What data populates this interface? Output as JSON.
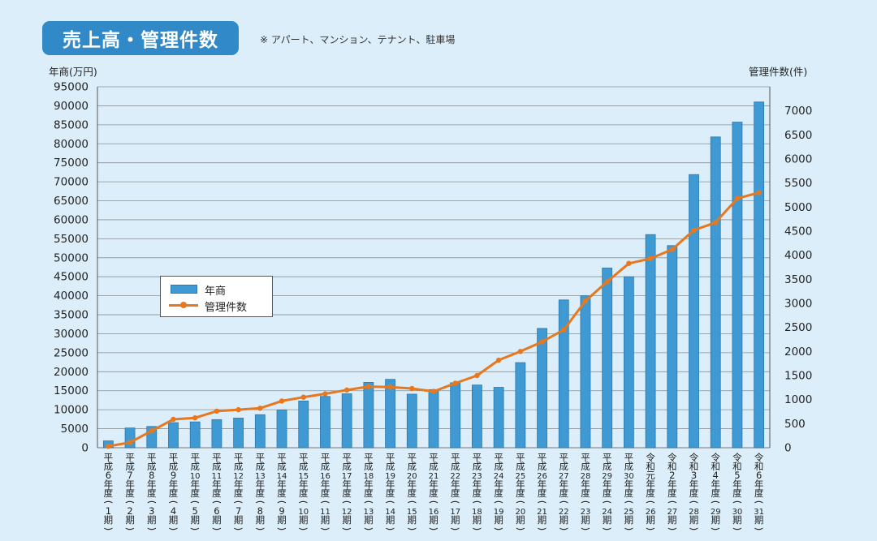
{
  "header": {
    "title": "売上高・管理件数",
    "note": "※ アパート、マンション、テナント、駐車場"
  },
  "colors": {
    "bar": "#3f9ad3",
    "bar_edge": "#2a78b0",
    "line": "#e8781e",
    "title_bg": "#3289c7",
    "background": "#dceef9"
  },
  "chart_data": {
    "type": "bar",
    "y_left_label": "年商(万円)",
    "y_right_label": "管理件数(件)",
    "ylim_left": [
      0,
      95000
    ],
    "ylim_right": [
      0,
      7500
    ],
    "yticks_left": [
      0,
      5000,
      10000,
      15000,
      20000,
      25000,
      30000,
      35000,
      40000,
      45000,
      50000,
      55000,
      60000,
      65000,
      70000,
      75000,
      80000,
      85000,
      90000,
      95000
    ],
    "yticks_right": [
      0,
      500,
      1000,
      1500,
      2000,
      2500,
      3000,
      3500,
      4000,
      4500,
      5000,
      5500,
      6000,
      6500,
      7000
    ],
    "grid": true,
    "legend_position": "middle-left",
    "categories": [
      [
        "平",
        "成",
        "6",
        "年",
        "度",
        "(",
        "1",
        "期",
        ")"
      ],
      [
        "平",
        "成",
        "7",
        "年",
        "度",
        "(",
        "2",
        "期",
        ")"
      ],
      [
        "平",
        "成",
        "8",
        "年",
        "度",
        "(",
        "3",
        "期",
        ")"
      ],
      [
        "平",
        "成",
        "9",
        "年",
        "度",
        "(",
        "4",
        "期",
        ")"
      ],
      [
        "平",
        "成",
        "10",
        "年",
        "度",
        "(",
        "5",
        "期",
        ")"
      ],
      [
        "平",
        "成",
        "11",
        "年",
        "度",
        "(",
        "6",
        "期",
        ")"
      ],
      [
        "平",
        "成",
        "12",
        "年",
        "度",
        "(",
        "7",
        "期",
        ")"
      ],
      [
        "平",
        "成",
        "13",
        "年",
        "度",
        "(",
        "8",
        "期",
        ")"
      ],
      [
        "平",
        "成",
        "14",
        "年",
        "度",
        "(",
        "9",
        "期",
        ")"
      ],
      [
        "平",
        "成",
        "15",
        "年",
        "度",
        "(",
        "10",
        "期",
        ")"
      ],
      [
        "平",
        "成",
        "16",
        "年",
        "度",
        "(",
        "11",
        "期",
        ")"
      ],
      [
        "平",
        "成",
        "17",
        "年",
        "度",
        "(",
        "12",
        "期",
        ")"
      ],
      [
        "平",
        "成",
        "18",
        "年",
        "度",
        "(",
        "13",
        "期",
        ")"
      ],
      [
        "平",
        "成",
        "19",
        "年",
        "度",
        "(",
        "14",
        "期",
        ")"
      ],
      [
        "平",
        "成",
        "20",
        "年",
        "度",
        "(",
        "15",
        "期",
        ")"
      ],
      [
        "平",
        "成",
        "21",
        "年",
        "度",
        "(",
        "16",
        "期",
        ")"
      ],
      [
        "平",
        "成",
        "22",
        "年",
        "度",
        "(",
        "17",
        "期",
        ")"
      ],
      [
        "平",
        "成",
        "23",
        "年",
        "度",
        "(",
        "18",
        "期",
        ")"
      ],
      [
        "平",
        "成",
        "24",
        "年",
        "度",
        "(",
        "19",
        "期",
        ")"
      ],
      [
        "平",
        "成",
        "25",
        "年",
        "度",
        "(",
        "20",
        "期",
        ")"
      ],
      [
        "平",
        "成",
        "26",
        "年",
        "度",
        "(",
        "21",
        "期",
        ")"
      ],
      [
        "平",
        "成",
        "27",
        "年",
        "度",
        "(",
        "22",
        "期",
        ")"
      ],
      [
        "平",
        "成",
        "28",
        "年",
        "度",
        "(",
        "23",
        "期",
        ")"
      ],
      [
        "平",
        "成",
        "29",
        "年",
        "度",
        "(",
        "24",
        "期",
        ")"
      ],
      [
        "平",
        "成",
        "30",
        "年",
        "度",
        "(",
        "25",
        "期",
        ")"
      ],
      [
        "令",
        "和",
        "元",
        "年",
        "度",
        "(",
        "26",
        "期",
        ")"
      ],
      [
        "令",
        "和",
        "2",
        "年",
        "度",
        "(",
        "27",
        "期",
        ")"
      ],
      [
        "令",
        "和",
        "3",
        "年",
        "度",
        "(",
        "28",
        "期",
        ")"
      ],
      [
        "令",
        "和",
        "4",
        "年",
        "度",
        "(",
        "29",
        "期",
        ")"
      ],
      [
        "令",
        "和",
        "5",
        "年",
        "度",
        "(",
        "30",
        "期",
        ")"
      ],
      [
        "令",
        "和",
        "6",
        "年",
        "度",
        "(",
        "31",
        "期",
        ")"
      ]
    ],
    "series": [
      {
        "name": "年商",
        "type": "bar",
        "axis": "left",
        "values": [
          1800,
          5200,
          5600,
          6600,
          6800,
          7400,
          7800,
          8700,
          9900,
          12300,
          13500,
          14200,
          17200,
          18000,
          14100,
          15300,
          17100,
          16500,
          15900,
          22400,
          31400,
          38900,
          40000,
          47300,
          45000,
          56100,
          53200,
          71900,
          81800,
          85700,
          91000
        ]
      },
      {
        "name": "管理件数",
        "type": "line",
        "axis": "right",
        "values": [
          30,
          110,
          350,
          590,
          620,
          760,
          790,
          820,
          970,
          1050,
          1120,
          1200,
          1270,
          1260,
          1230,
          1170,
          1340,
          1500,
          1820,
          2000,
          2200,
          2450,
          3050,
          3450,
          3830,
          3930,
          4120,
          4520,
          4680,
          5180,
          5300
        ]
      }
    ]
  }
}
